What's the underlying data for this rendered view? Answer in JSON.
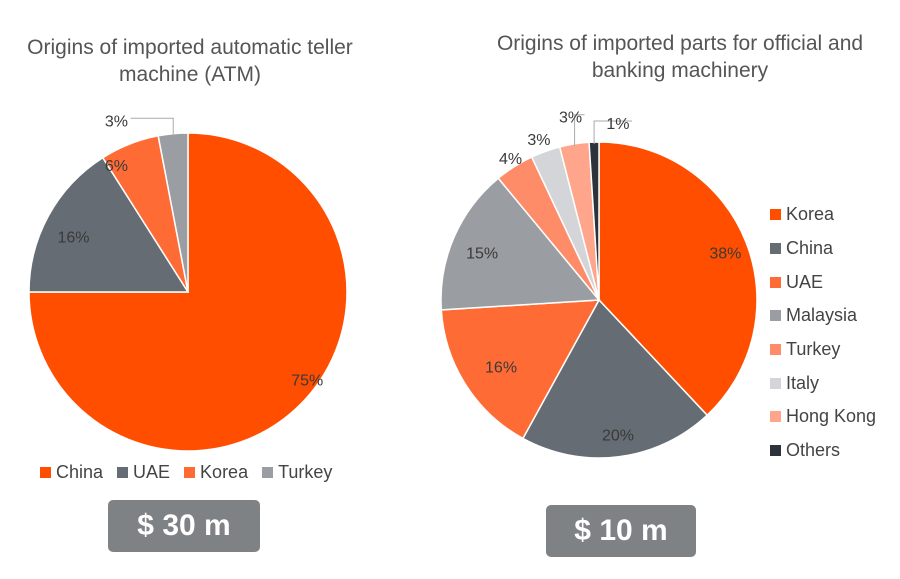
{
  "chart_data": [
    {
      "type": "pie",
      "title": "Origins of imported automatic teller machine (ATM)",
      "categories": [
        "China",
        "UAE",
        "Korea",
        "Turkey"
      ],
      "values": [
        75,
        16,
        6,
        3
      ],
      "labels": [
        "75%",
        "16%",
        "6%",
        "3%"
      ],
      "colors": [
        "#FF4E00",
        "#666C73",
        "#FF6B35",
        "#9A9DA2"
      ],
      "legend": "bottom",
      "value_label": "$ 30 m"
    },
    {
      "type": "pie",
      "title": "Origins of imported parts for official and banking machinery",
      "categories": [
        "Korea",
        "China",
        "UAE",
        "Malaysia",
        "Turkey",
        "Italy",
        "Hong Kong",
        "Others"
      ],
      "values": [
        38,
        20,
        16,
        15,
        4,
        3,
        3,
        1
      ],
      "labels": [
        "38%",
        "20%",
        "16%",
        "15%",
        "4%",
        "3%",
        "3%",
        "1%"
      ],
      "colors": [
        "#FF4E00",
        "#666C73",
        "#FF6B35",
        "#9A9DA2",
        "#FF8C69",
        "#D3D5D8",
        "#FFA58C",
        "#2C333B"
      ],
      "legend": "right",
      "value_label": "$ 10 m"
    }
  ]
}
